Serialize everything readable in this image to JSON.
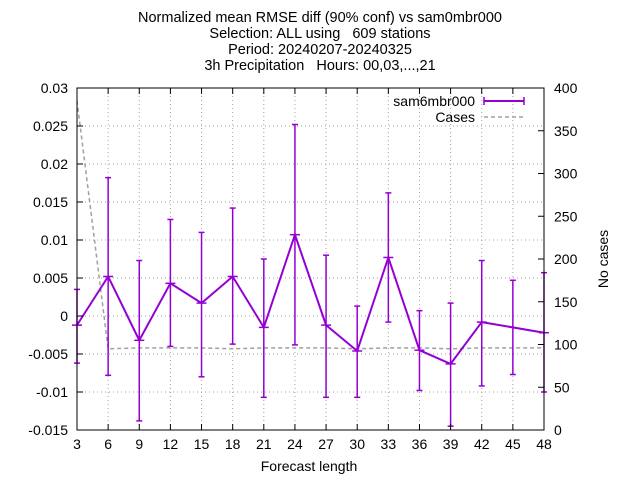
{
  "chart_data": {
    "type": "line",
    "title": [
      "Normalized mean RMSE diff (90% conf) vs sam0mbr000",
      "Selection: ALL using   609 stations",
      "Period: 20240207-20240325",
      "3h Precipitation   Hours: 00,03,...,21"
    ],
    "xlabel": "Forecast length",
    "ylabel": "",
    "y2label": "No cases",
    "x": [
      3,
      6,
      9,
      12,
      15,
      18,
      21,
      24,
      27,
      30,
      33,
      36,
      39,
      42,
      45,
      48
    ],
    "xticks": [
      "3",
      "6",
      "9",
      "12",
      "15",
      "18",
      "21",
      "24",
      "27",
      "30",
      "33",
      "36",
      "39",
      "42",
      "45",
      "48"
    ],
    "xlim": [
      3,
      48
    ],
    "ylim": [
      -0.015,
      0.03
    ],
    "yticks": [
      "-0.015",
      "-0.01",
      "-0.005",
      "0",
      "0.005",
      "0.01",
      "0.015",
      "0.02",
      "0.025",
      "0.03"
    ],
    "y2lim": [
      0,
      400
    ],
    "y2ticks": [
      "0",
      "50",
      "100",
      "150",
      "200",
      "250",
      "300",
      "350",
      "400"
    ],
    "legend_position": "top-right",
    "grid": true,
    "series": [
      {
        "name": "sam6mbr000",
        "color": "#9400d3",
        "axis": "left",
        "style": "errorbars",
        "x": [
          3,
          6,
          9,
          12,
          15,
          18,
          21,
          24,
          27,
          30,
          33,
          36,
          39,
          42,
          48
        ],
        "values": [
          -0.0012,
          0.0052,
          -0.0032,
          0.0043,
          0.0017,
          0.0052,
          -0.0015,
          0.0107,
          -0.0012,
          -0.0046,
          0.0077,
          -0.0045,
          -0.0063,
          -0.0008,
          -0.0022
        ],
        "lower": [
          -0.0062,
          -0.0078,
          -0.0138,
          -0.004,
          -0.008,
          -0.0037,
          -0.0107,
          -0.0038,
          -0.0107,
          -0.0107,
          -0.0008,
          -0.0098,
          -0.0145,
          -0.0092,
          -0.01
        ],
        "upper": [
          0.0035,
          0.0182,
          0.0073,
          0.0127,
          0.011,
          0.0142,
          0.0075,
          0.0252,
          0.008,
          0.0013,
          0.0162,
          0.0007,
          0.0017,
          0.0073,
          0.0057
        ],
        "extra_errorbars": [
          {
            "x": 45,
            "lower": -0.0077,
            "upper": 0.0047
          }
        ]
      },
      {
        "name": "Cases",
        "color": "#a0a0a0",
        "axis": "right",
        "style": "dashed",
        "x": [
          3,
          6,
          9,
          12,
          15,
          18,
          21,
          24,
          27,
          30,
          33,
          36,
          39,
          42,
          45,
          48
        ],
        "values": [
          385,
          95,
          96,
          96,
          96,
          95,
          96,
          96,
          96,
          95,
          96,
          96,
          95,
          96,
          96,
          96
        ]
      }
    ]
  }
}
